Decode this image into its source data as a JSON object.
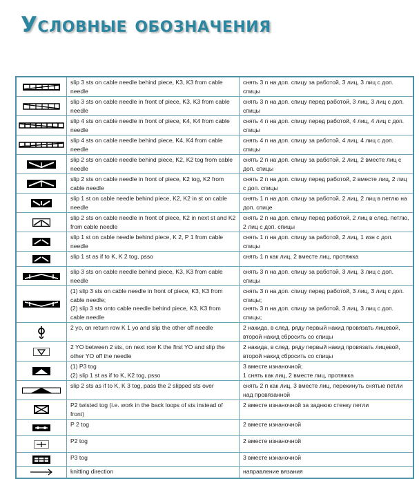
{
  "title": "Условные обозначения",
  "colors": {
    "title": "#2d86a0",
    "border": "#4a8fa8"
  },
  "rows": [
    {
      "icon": "cable-3-3-behind-icon",
      "sym": "c33b",
      "en": "slip 3 sts on cable needle behind piece, K3, K3 from cable needle",
      "ru": "снять 3 п на доп. спицу за работой, 3 лиц, 3 лиц с доп. спицы"
    },
    {
      "icon": "cable-3-3-front-icon",
      "sym": "c33f",
      "en": "slip 3 sts on cable needle in front of piece, K3, K3 from cable needle",
      "ru": "снять 3 п на доп. спицу перед работой, 3 лиц, 3 лиц с доп. спицы"
    },
    {
      "icon": "cable-4-4-front-icon",
      "sym": "c44f",
      "en": "slip 4 sts on cable needle in front of piece, K4, K4 from cable needle",
      "ru": "снять 4 п на доп. спицу перед работой, 4 лиц, 4 лиц с доп. спицы"
    },
    {
      "icon": "cable-4-4-behind-icon",
      "sym": "c44b",
      "en": "slip 4 sts on cable needle behind piece, K4, K4 from cable needle",
      "ru": "снять 4 п на доп. спицу за работой, 4 лиц, 4 лиц с доп. спицы"
    },
    {
      "icon": "cable-2-2tog-behind-icon",
      "sym": "vb",
      "en": "slip 2 sts on cable needle behind piece, K2, K2 tog from cable needle",
      "ru": "снять 2 п на доп. спицу за работой, 2 лиц, 2 вместе лиц с доп. спицы"
    },
    {
      "icon": "cable-2tog-2-front-icon",
      "sym": "vf",
      "en": "slip 2 sts on cable needle in front of piece, K2 tog, K2 from cable needle",
      "ru": "снять 2 п на доп. спицу перед работой, 2 вместе лиц, 2 лиц с доп. спицы"
    },
    {
      "icon": "cable-1-2-behind-icon",
      "sym": "s1",
      "en": "slip 1 st on cable needle behind piece, K2, K2 in st on cable needle",
      "ru": "снять 1 п на доп. спицу за работой, 2 лиц, 2 лиц в петлю на доп. спице"
    },
    {
      "icon": "cable-2-2-front-icon",
      "sym": "s2",
      "en": "slip 2 sts on cable needle in front of piece, K2 in next st and K2 from cable needle",
      "ru": "снять 2 п на доп. спицу перед работой, 2 лиц в след. петлю, 2 лиц с доп. спицы"
    },
    {
      "icon": "cable-2-p1-behind-icon",
      "sym": "s3",
      "en": "slip 1 st on cable needle behind piece, K 2, P 1 from cable needle",
      "ru": "снять 1 п на доп. спицу за работой, 2 лиц, 1 изн с доп. спицы"
    },
    {
      "icon": "sl1-k2tog-psso-icon",
      "sym": "s3",
      "en": "slip 1 st as if to K, K 2 tog, psso",
      "ru": "снять 1 п как лиц, 2 вместе лиц, протяжка"
    },
    {
      "icon": "cable-3-3-behind-icon",
      "sym": "c33x",
      "en": "slip 3 sts on cable needle behind piece, K3, K3 from cable needle",
      "ru": "снять 3 п на доп. спицу за работой, 3 лиц, 3 лиц с доп. спицы"
    },
    {
      "icon": "cable-3-3-double-icon",
      "sym": "dbl",
      "en": "(1) slip 3 sts on cable needle in front of piece, K3, K3 from cable needle;\n(2) slip 3 sts onto cable needle behind piece, K3, K3 from cable needle",
      "ru": "снять 3 п на доп. спицу перед работой, 3 лиц, 3 лиц с доп. спицы;\nснять 3 п на доп. спицу за работой, 3 лиц, 3 лиц с доп. спицы;"
    },
    {
      "icon": "double-yo-icon",
      "sym": "yo",
      "en": "2 yo, on return row K 1 yo and slip the other off needle",
      "ru": "2 накида, в след. ряду первый накид провязать лицевой, второй накид сбросить со спицы"
    },
    {
      "icon": "yo-between-icon",
      "sym": "yo2",
      "en": "2 YO between 2 sts, on next row K the first YO and slip the other YO off the needle",
      "ru": "2 накида, в след. ряду первый накид провязать лицевой, второй накид сбросить со спицы"
    },
    {
      "icon": "p3tog-icon",
      "sym": "p3t",
      "en": "(1) P3 tog\n(2) slip 1 st as if to K, K2 tog, psso",
      "ru": "3 вместе изнаночной;\n1 снять как лиц, 2 вместе лиц, протяжка"
    },
    {
      "icon": "sl2-k3tog-p2sso-icon",
      "sym": "tri",
      "en": "slip 2 sts as if to K, K 3 tog, pass the 2 slipped sts over",
      "ru": "снять 2 п как лиц, 3 вместе лиц, перекинуть снятые петли над провязанной"
    },
    {
      "icon": "p2tog-twisted-icon",
      "sym": "x",
      "en": "P2 twisted tog (i.e. work in the back loops of sts instead of front)",
      "ru": "2 вместе изнаночной за заднюю стенку петли"
    },
    {
      "icon": "p2tog-icon",
      "sym": "p2a",
      "en": "P 2 tog",
      "ru": "2 вместе изнаночной"
    },
    {
      "icon": "p2tog-icon",
      "sym": "p2b",
      "en": "P2 tog",
      "ru": "2 вместе изнаночной"
    },
    {
      "icon": "p3tog-icon",
      "sym": "p3",
      "en": "P3 tog",
      "ru": "3 вместе изнаночной"
    },
    {
      "icon": "arrow-right-icon",
      "sym": "arrow",
      "en": "knitting direction",
      "ru": "направление вязания"
    }
  ]
}
